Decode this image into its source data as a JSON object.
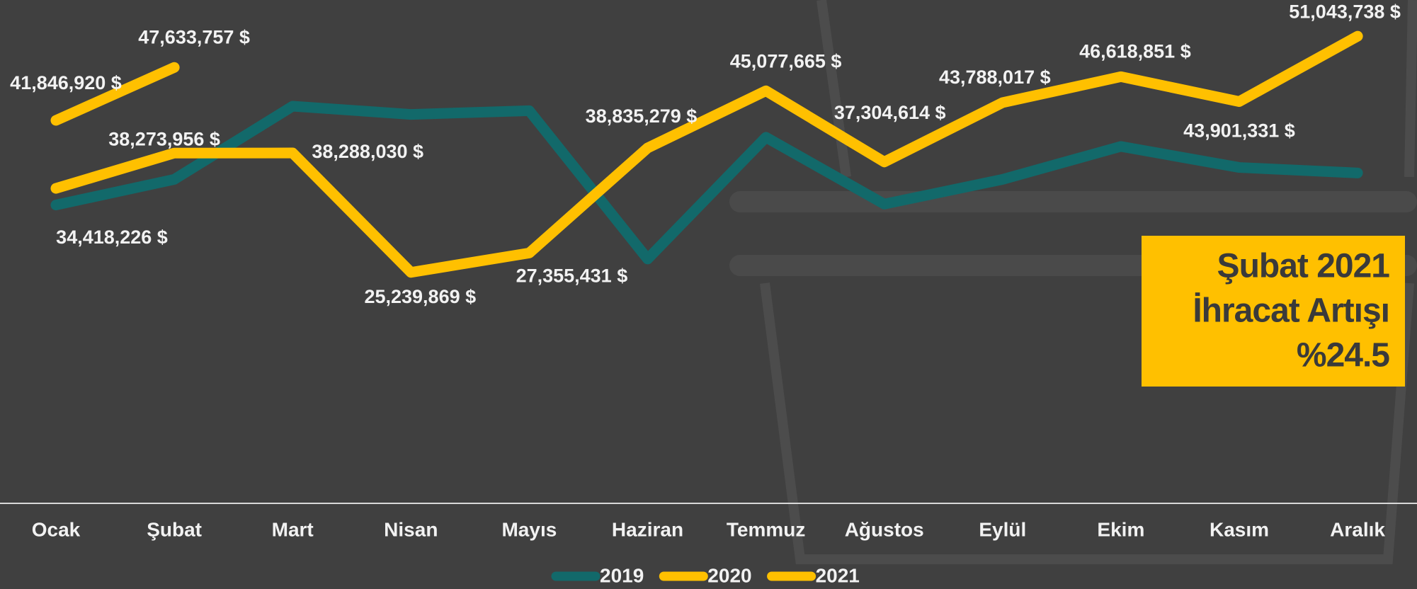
{
  "chart_data": {
    "type": "line",
    "categories": [
      "Ocak",
      "Şubat",
      "Mart",
      "Nisan",
      "Mayıs",
      "Haziran",
      "Temmuz",
      "Ağustos",
      "Eylül",
      "Ekim",
      "Kasım",
      "Aralık"
    ],
    "series": [
      {
        "name": "2019",
        "color": "#12696a",
        "values": [
          32600000,
          35400000,
          43400000,
          42500000,
          42900000,
          26700000,
          40000000,
          32700000,
          35400000,
          39000000,
          36700000,
          36100000
        ]
      },
      {
        "name": "2020",
        "color": "#ffc000",
        "values": [
          34418226,
          38273956,
          38288030,
          25239869,
          27355431,
          38835279,
          45077665,
          37304614,
          43788017,
          46618851,
          43901331,
          51043738
        ],
        "value_labels": [
          "34,418,226 $",
          "38,273,956 $",
          "38,288,030 $",
          "25,239,869 $",
          "27,355,431 $",
          "38,835,279 $",
          "45,077,665 $",
          "37,304,614 $",
          "43,788,017 $",
          "46,618,851 $",
          "43,901,331 $",
          "51,043,738 $"
        ]
      },
      {
        "name": "2021",
        "color": "#ffc000",
        "values": [
          41846920,
          47633757,
          null,
          null,
          null,
          null,
          null,
          null,
          null,
          null,
          null,
          null
        ],
        "value_labels": [
          "41,846,920 $",
          "47,633,757 $",
          null,
          null,
          null,
          null,
          null,
          null,
          null,
          null,
          null,
          null
        ]
      }
    ],
    "ylim": [
      0,
      55000000
    ],
    "legend": "bottom",
    "annotation": {
      "lines": [
        "Şubat 2021",
        "İhracat Artışı",
        "%24.5"
      ],
      "color": "#ffc000"
    }
  }
}
